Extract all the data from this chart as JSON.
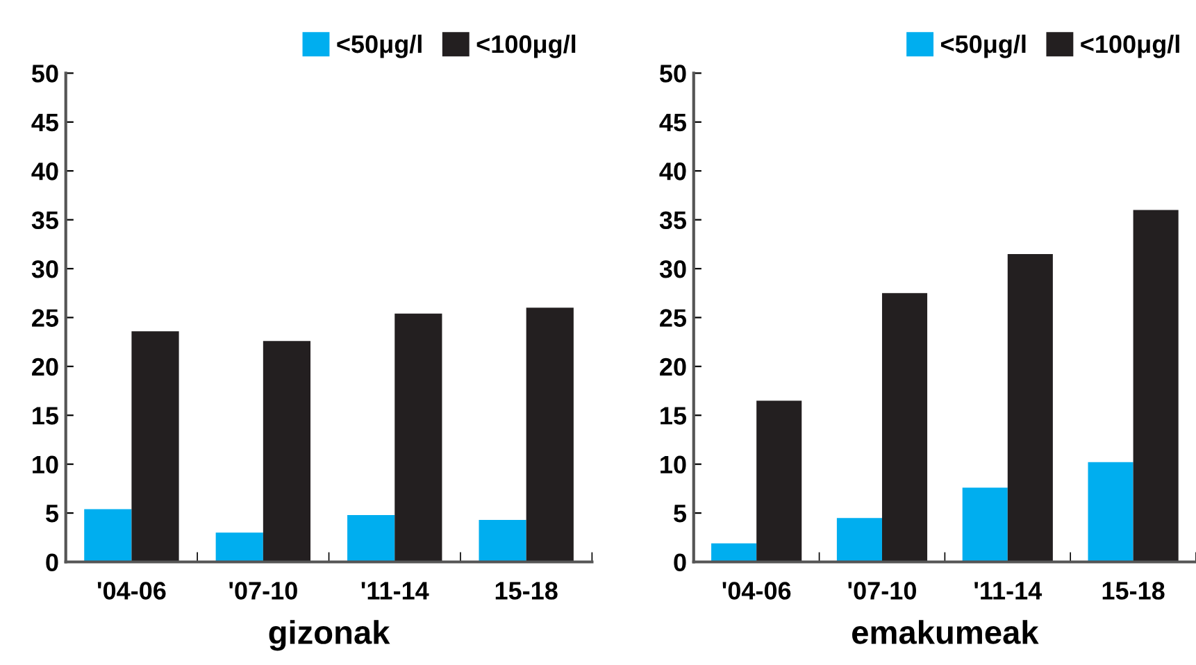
{
  "chart_data": [
    {
      "type": "bar",
      "xlabel": "gizonak",
      "categories": [
        "'04-06",
        "'07-10",
        "'11-14",
        "15-18"
      ],
      "series": [
        {
          "name": "<50μg/l",
          "color": "#00aeef",
          "values": [
            5.4,
            3.0,
            4.8,
            4.3
          ]
        },
        {
          "name": "<100μg/l",
          "color": "#231f20",
          "values": [
            23.6,
            22.6,
            25.4,
            26.0
          ]
        }
      ],
      "ylim": [
        0,
        50
      ],
      "yticks": [
        0,
        5,
        10,
        15,
        20,
        25,
        30,
        35,
        40,
        45,
        50
      ],
      "grid": false,
      "legend": "top"
    },
    {
      "type": "bar",
      "xlabel": "emakumeak",
      "categories": [
        "'04-06",
        "'07-10",
        "'11-14",
        "15-18"
      ],
      "series": [
        {
          "name": "<50μg/l",
          "color": "#00aeef",
          "values": [
            1.9,
            4.5,
            7.6,
            10.2
          ]
        },
        {
          "name": "<100μg/l",
          "color": "#231f20",
          "values": [
            16.5,
            27.5,
            31.5,
            36.0
          ]
        }
      ],
      "ylim": [
        0,
        50
      ],
      "yticks": [
        0,
        5,
        10,
        15,
        20,
        25,
        30,
        35,
        40,
        45,
        50
      ],
      "grid": false,
      "legend": "top"
    }
  ]
}
